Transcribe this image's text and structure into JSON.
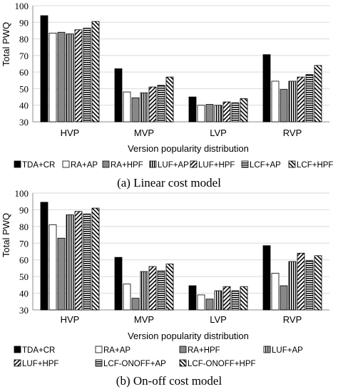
{
  "pattern_legend": {
    "TDA+CR": "solid-black",
    "RA+AP": "white",
    "RA+HPF": "solid-gray",
    "LUF+AP": "vertical-stripes",
    "LUF+HPF": "diagonal-stripes-right",
    "LCF+AP": "horizontal-stripes",
    "LCF+HPF": "diagonal-stripes-left"
  },
  "colors": {
    "black": "#000000",
    "gray": "#888888",
    "white": "#ffffff",
    "axis": "#8c8c8c",
    "grid": "#d9d9d9"
  },
  "chart_data": [
    {
      "type": "bar",
      "caption": "(a) Linear cost model",
      "xlabel": "Version popularity distribution",
      "ylabel": "Total PWQ",
      "ylim": [
        30,
        100
      ],
      "yticks": [
        30,
        40,
        50,
        60,
        70,
        80,
        90,
        100
      ],
      "grid": true,
      "legend_position": "bottom",
      "categories": [
        "HVP",
        "MVP",
        "LVP",
        "RVP"
      ],
      "series": [
        {
          "name": "TDA+CR",
          "pattern": "solid-black",
          "values": [
            94,
            62,
            45,
            70.5
          ]
        },
        {
          "name": "RA+AP",
          "pattern": "white",
          "values": [
            83.5,
            48,
            40,
            54.5
          ]
        },
        {
          "name": "RA+HPF",
          "pattern": "solid-gray",
          "values": [
            84,
            44.5,
            40.5,
            49.5
          ]
        },
        {
          "name": "LUF+AP",
          "pattern": "vertical-stripes",
          "values": [
            83,
            47.5,
            40,
            54.5
          ]
        },
        {
          "name": "LUF+HPF",
          "pattern": "diagonal-stripes-right",
          "values": [
            85.5,
            51,
            42,
            57
          ]
        },
        {
          "name": "LCF+AP",
          "pattern": "horizontal-stripes",
          "values": [
            86.5,
            52,
            41.5,
            58.5
          ]
        },
        {
          "name": "LCF+HPF",
          "pattern": "diagonal-stripes-left",
          "values": [
            90.5,
            57,
            44,
            64
          ]
        }
      ]
    },
    {
      "type": "bar",
      "caption": "(b) On-off cost model",
      "xlabel": "Version popularity distribution",
      "ylabel": "Total PWQ",
      "ylim": [
        30,
        100
      ],
      "yticks": [
        30,
        40,
        50,
        60,
        70,
        80,
        90,
        100
      ],
      "grid": true,
      "legend_position": "bottom",
      "categories": [
        "HVP",
        "MVP",
        "LVP",
        "RVP"
      ],
      "series": [
        {
          "name": "TDA+CR",
          "pattern": "solid-black",
          "values": [
            94.5,
            61.5,
            44.5,
            68.5
          ]
        },
        {
          "name": "RA+AP",
          "pattern": "white",
          "values": [
            81,
            45.5,
            39,
            52
          ]
        },
        {
          "name": "RA+HPF",
          "pattern": "solid-gray",
          "values": [
            73,
            37,
            36.5,
            44.5
          ]
        },
        {
          "name": "LUF+AP",
          "pattern": "vertical-stripes",
          "values": [
            87,
            53,
            41.5,
            59
          ]
        },
        {
          "name": "LUF+HPF",
          "pattern": "diagonal-stripes-right",
          "values": [
            89,
            56,
            44,
            64
          ]
        },
        {
          "name": "LCF-ONOFF+AP",
          "pattern": "horizontal-stripes",
          "values": [
            87.5,
            53.5,
            41.5,
            59.5
          ]
        },
        {
          "name": "LCF-ONOFF+HPF",
          "pattern": "diagonal-stripes-left",
          "values": [
            91,
            57.5,
            44,
            62.5
          ]
        }
      ]
    }
  ]
}
